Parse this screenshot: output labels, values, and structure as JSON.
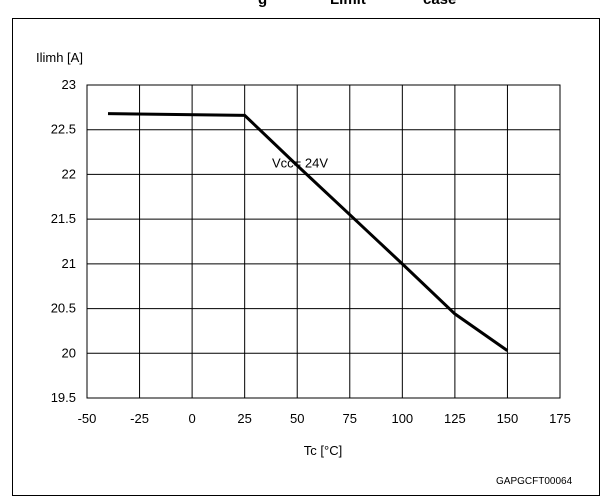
{
  "page": {
    "top_fragments": [
      "g",
      "Limit",
      "case"
    ],
    "figure_code": "GAPGCFT00064"
  },
  "chart_data": {
    "type": "line",
    "title": "",
    "xlabel": "Tc [°C]",
    "ylabel": "Ilimh [A]",
    "xlim": [
      -50,
      175
    ],
    "ylim": [
      19.5,
      23
    ],
    "x_ticks": [
      -50,
      -25,
      0,
      25,
      50,
      75,
      100,
      125,
      150,
      175
    ],
    "y_ticks": [
      19.5,
      20,
      20.5,
      21,
      21.5,
      22,
      22.5,
      23
    ],
    "x_tick_labels": [
      "-50",
      "-25",
      "0",
      "25",
      "50",
      "75",
      "100",
      "125",
      "150",
      "175"
    ],
    "y_tick_labels": [
      "19.5",
      "20",
      "20.5",
      "21",
      "21.5",
      "22",
      "22.5",
      "23"
    ],
    "grid": true,
    "annotations": [
      {
        "text": "Vcc= 24V",
        "x": 38,
        "y": 22.12
      }
    ],
    "series": [
      {
        "x": [
          -40,
          25,
          50,
          75,
          100,
          125,
          150
        ],
        "y": [
          22.68,
          22.66,
          22.1,
          21.55,
          21.0,
          20.44,
          20.03
        ]
      }
    ],
    "line_color": "#000000"
  }
}
